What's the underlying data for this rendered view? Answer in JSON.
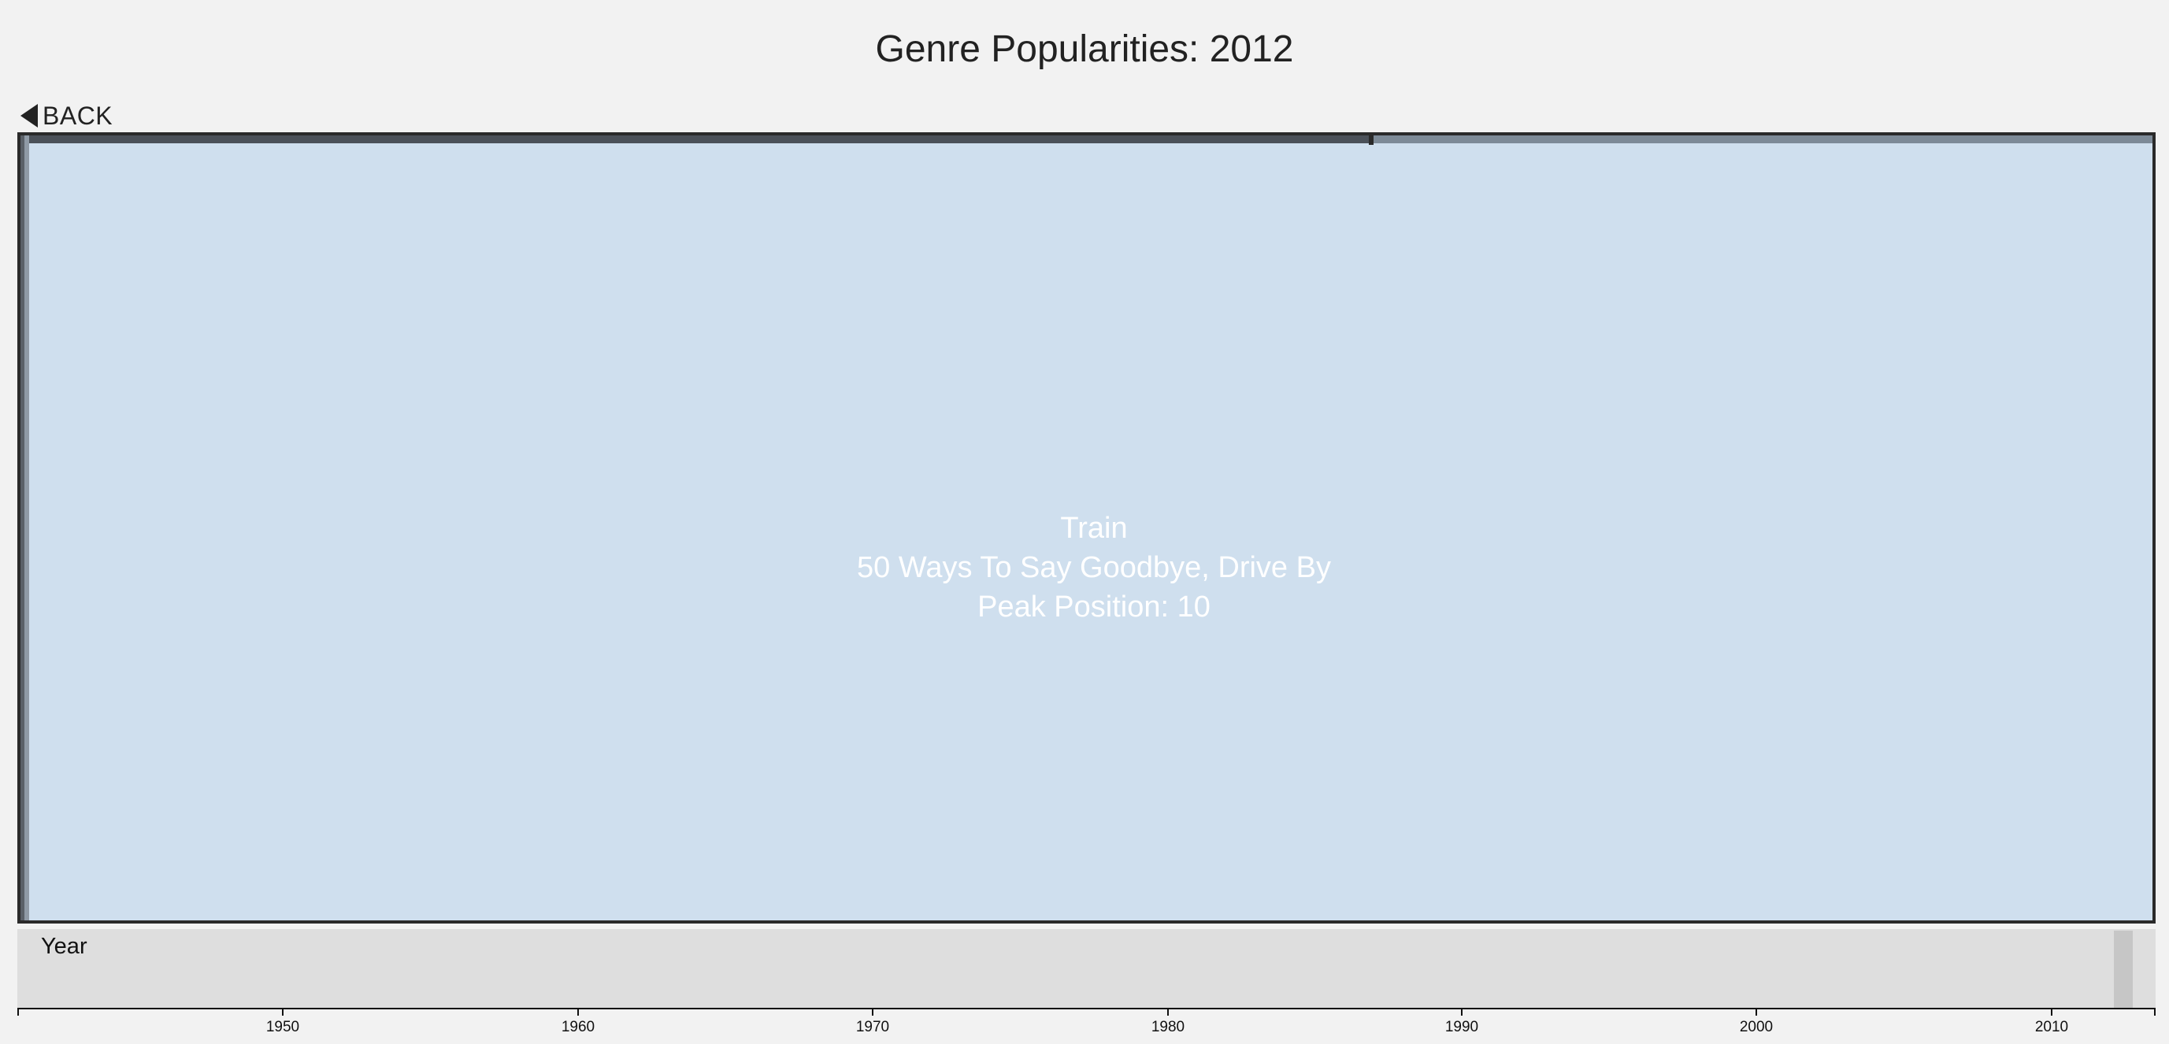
{
  "page": {
    "title": "Genre Popularities: 2012"
  },
  "nav": {
    "back_label": "BACK",
    "back_icon": "caret-left-icon"
  },
  "treemap": {
    "tile": {
      "artist": "Train",
      "songs": "50 Ways To Say Goodbye, Drive By",
      "peak": "Peak Position: 10",
      "color": "#cfdfee"
    },
    "border_color": "#2a2a2a"
  },
  "timeline": {
    "label": "Year",
    "selected_year": 2012,
    "range": [
      1941,
      2014
    ],
    "ticks": [
      "1950",
      "1960",
      "1970",
      "1980",
      "1990",
      "2000",
      "2010"
    ]
  }
}
